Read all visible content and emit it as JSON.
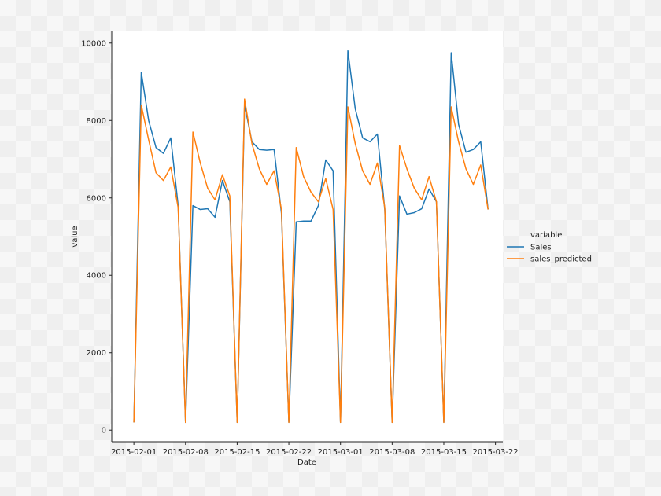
{
  "chart_data": {
    "type": "line",
    "xlabel": "Date",
    "ylabel": "value",
    "x_ticks": [
      "2015-02-01",
      "2015-02-08",
      "2015-02-15",
      "2015-02-22",
      "2015-03-01",
      "2015-03-08",
      "2015-03-15",
      "2015-03-22"
    ],
    "y_ticks": [
      0,
      2000,
      4000,
      6000,
      8000,
      10000
    ],
    "xlim": [
      "2015-01-29",
      "2015-03-23"
    ],
    "ylim": [
      -300,
      10300
    ],
    "grid": false,
    "legend": {
      "title": "variable",
      "placement": "right",
      "entries": [
        "Sales",
        "sales_predicted"
      ]
    },
    "x": [
      "2015-02-01",
      "2015-02-02",
      "2015-02-03",
      "2015-02-04",
      "2015-02-05",
      "2015-02-06",
      "2015-02-07",
      "2015-02-08",
      "2015-02-09",
      "2015-02-10",
      "2015-02-11",
      "2015-02-12",
      "2015-02-13",
      "2015-02-14",
      "2015-02-15",
      "2015-02-16",
      "2015-02-17",
      "2015-02-18",
      "2015-02-19",
      "2015-02-20",
      "2015-02-21",
      "2015-02-22",
      "2015-02-23",
      "2015-02-24",
      "2015-02-25",
      "2015-02-26",
      "2015-02-27",
      "2015-02-28",
      "2015-03-01",
      "2015-03-02",
      "2015-03-03",
      "2015-03-04",
      "2015-03-05",
      "2015-03-06",
      "2015-03-07",
      "2015-03-08",
      "2015-03-09",
      "2015-03-10",
      "2015-03-11",
      "2015-03-12",
      "2015-03-13",
      "2015-03-14",
      "2015-03-15",
      "2015-03-16",
      "2015-03-17",
      "2015-03-18",
      "2015-03-19",
      "2015-03-20",
      "2015-03-21"
    ],
    "series": [
      {
        "name": "Sales",
        "color": "#1f77b4",
        "values": [
          200,
          9250,
          8000,
          7300,
          7150,
          7550,
          5800,
          200,
          5800,
          5700,
          5720,
          5500,
          6450,
          5900,
          200,
          8400,
          7450,
          7250,
          7230,
          7250,
          5600,
          200,
          5380,
          5400,
          5400,
          5800,
          6980,
          6700,
          200,
          9800,
          8300,
          7550,
          7450,
          7650,
          5700,
          200,
          6050,
          5580,
          5620,
          5720,
          6230,
          5900,
          200,
          9750,
          7900,
          7180,
          7250,
          7450,
          5700
        ]
      },
      {
        "name": "sales_predicted",
        "color": "#ff7f0e",
        "values": [
          200,
          8400,
          7500,
          6650,
          6450,
          6800,
          5750,
          200,
          7700,
          6900,
          6250,
          5950,
          6600,
          6050,
          200,
          8550,
          7400,
          6750,
          6350,
          6700,
          5700,
          200,
          7300,
          6550,
          6150,
          5900,
          6500,
          5700,
          200,
          8350,
          7400,
          6700,
          6350,
          6900,
          5750,
          200,
          7350,
          6750,
          6250,
          5950,
          6550,
          5900,
          200,
          8350,
          7450,
          6750,
          6350,
          6850,
          5700
        ]
      }
    ]
  }
}
